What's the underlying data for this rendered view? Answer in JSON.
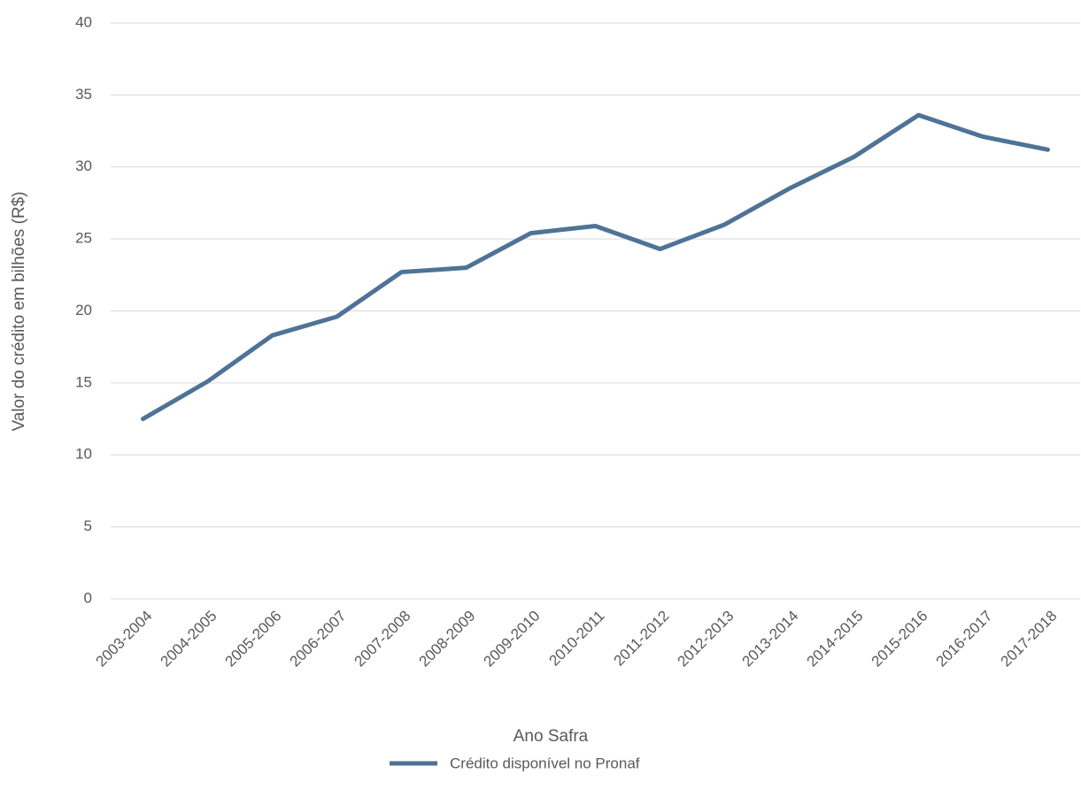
{
  "chart_data": {
    "type": "line",
    "x_label": "Ano Safra",
    "y_label": "Valor do crédito em bilhões (R$)",
    "categories": [
      "2003-2004",
      "2004-2005",
      "2005-2006",
      "2006-2007",
      "2007-2008",
      "2008-2009",
      "2009-2010",
      "2010-2011",
      "2011-2012",
      "2012-2013",
      "2013-2014",
      "2014-2015",
      "2015-2016",
      "2016-2017",
      "2017-2018"
    ],
    "series": [
      {
        "name": "Crédito disponível no Pronaf",
        "color": "#4e7396",
        "values": [
          12.5,
          15.1,
          18.3,
          19.6,
          22.7,
          23.0,
          25.4,
          25.9,
          24.3,
          26.0,
          28.5,
          30.7,
          33.6,
          32.1,
          31.2
        ]
      }
    ],
    "ylim": [
      0,
      40
    ],
    "yticks": [
      0,
      5,
      10,
      15,
      20,
      25,
      30,
      35,
      40
    ],
    "grid": true,
    "legend": "bottom"
  }
}
